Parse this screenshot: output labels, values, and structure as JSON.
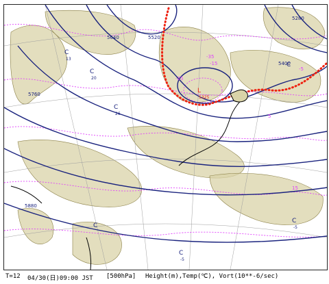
{
  "footer": {
    "step": "T=12",
    "datetime": "04/30(日)09:00 JST",
    "level": "[500hPa]",
    "fields": "Height(m),Temp(℃), Vort(10**-6/sec)"
  },
  "height_labels": [
    "5280",
    "5400",
    "5520",
    "5640",
    "5760",
    "5880"
  ],
  "temp_labels": [
    "-35",
    "-25",
    "-15",
    "-5",
    "5",
    "15"
  ],
  "center_marks": [
    {
      "mark": "C",
      "value": "13"
    },
    {
      "mark": "C",
      "value": "20"
    },
    {
      "mark": "C",
      "value": "26"
    },
    {
      "mark": "C",
      "value": ""
    },
    {
      "mark": "C",
      "value": "-5"
    },
    {
      "mark": "C",
      "value": "-5"
    },
    {
      "mark": "C",
      "value": ""
    },
    {
      "mark": "L",
      "value": "5325"
    }
  ],
  "colors": {
    "height_contour": "#1a237e",
    "temp_contour": "#e040fb",
    "vorticity_fill": "#d9d3a8",
    "vorticity_line": "#8a7f45",
    "front": "#ee2211",
    "coast": "#000000",
    "grid": "#9e9e9e"
  }
}
